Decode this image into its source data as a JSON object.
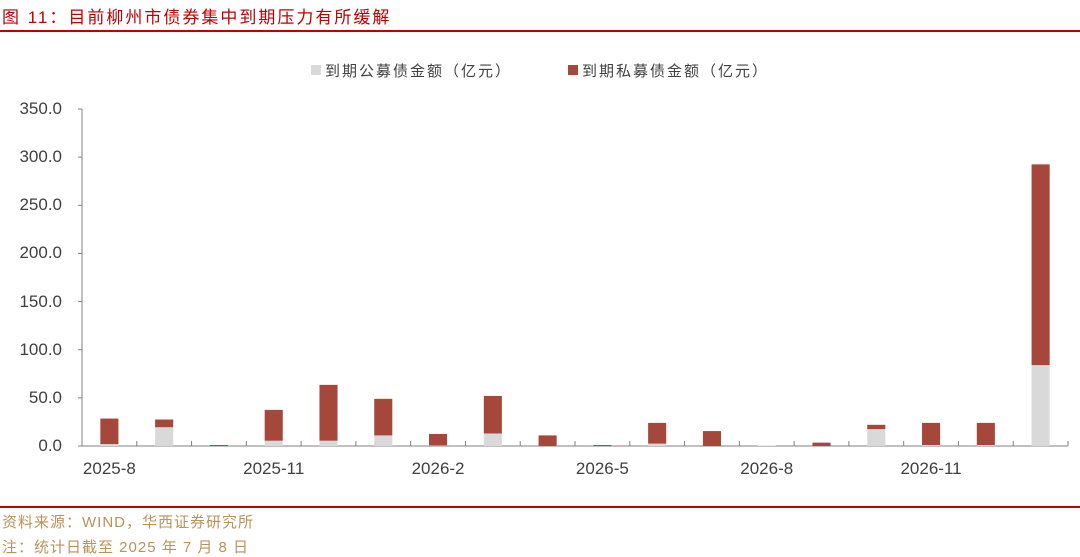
{
  "header": {
    "title": "图 11：目前柳州市债券集中到期压力有所缓解"
  },
  "legend": {
    "items": [
      {
        "label": "到期公募债金额（亿元）",
        "color": "#d9d9d9"
      },
      {
        "label": "到期私募债金额（亿元）",
        "color": "#a5473b"
      }
    ]
  },
  "footer": {
    "source": "资料来源：WIND，华西证券研究所",
    "note": "注：统计日截至 2025 年 7 月 8 日"
  },
  "colors": {
    "accent": "#c00000",
    "public": "#d9d9d9",
    "private": "#a5473b",
    "axis": "#808080",
    "footer_text": "#b8935a"
  },
  "chart_data": {
    "type": "bar",
    "stacked": true,
    "title": "图 11：目前柳州市债券集中到期压力有所缓解",
    "xlabel": "",
    "ylabel": "",
    "ylim": [
      0,
      350
    ],
    "yticks": [
      "0.0",
      "50.0",
      "100.0",
      "150.0",
      "200.0",
      "250.0",
      "300.0",
      "350.0"
    ],
    "xtick_labels": [
      "2025-8",
      "2025-11",
      "2026-2",
      "2026-5",
      "2026-8",
      "2026-11"
    ],
    "grid": false,
    "legend_position": "top",
    "categories": [
      "2025-8",
      "2025-9",
      "2025-10",
      "2025-11",
      "2025-12",
      "2026-1",
      "2026-2",
      "2026-3",
      "2026-4",
      "2026-5",
      "2026-6",
      "2026-7",
      "2026-8",
      "2026-9",
      "2026-10",
      "2026-11",
      "2026-12",
      "2027-1"
    ],
    "series": [
      {
        "name": "到期公募债金额（亿元）",
        "values": [
          2,
          19.5,
          0,
          5.5,
          5.5,
          11,
          0.5,
          13,
          0,
          0,
          2.5,
          0,
          0.5,
          0,
          17.5,
          1,
          1,
          84
        ]
      },
      {
        "name": "到期私募债金额（亿元）",
        "values": [
          26.5,
          8,
          1,
          32,
          58,
          38,
          12,
          39,
          11,
          1,
          21.5,
          15.5,
          0,
          3.5,
          4.5,
          23,
          23,
          208.5
        ]
      }
    ]
  }
}
